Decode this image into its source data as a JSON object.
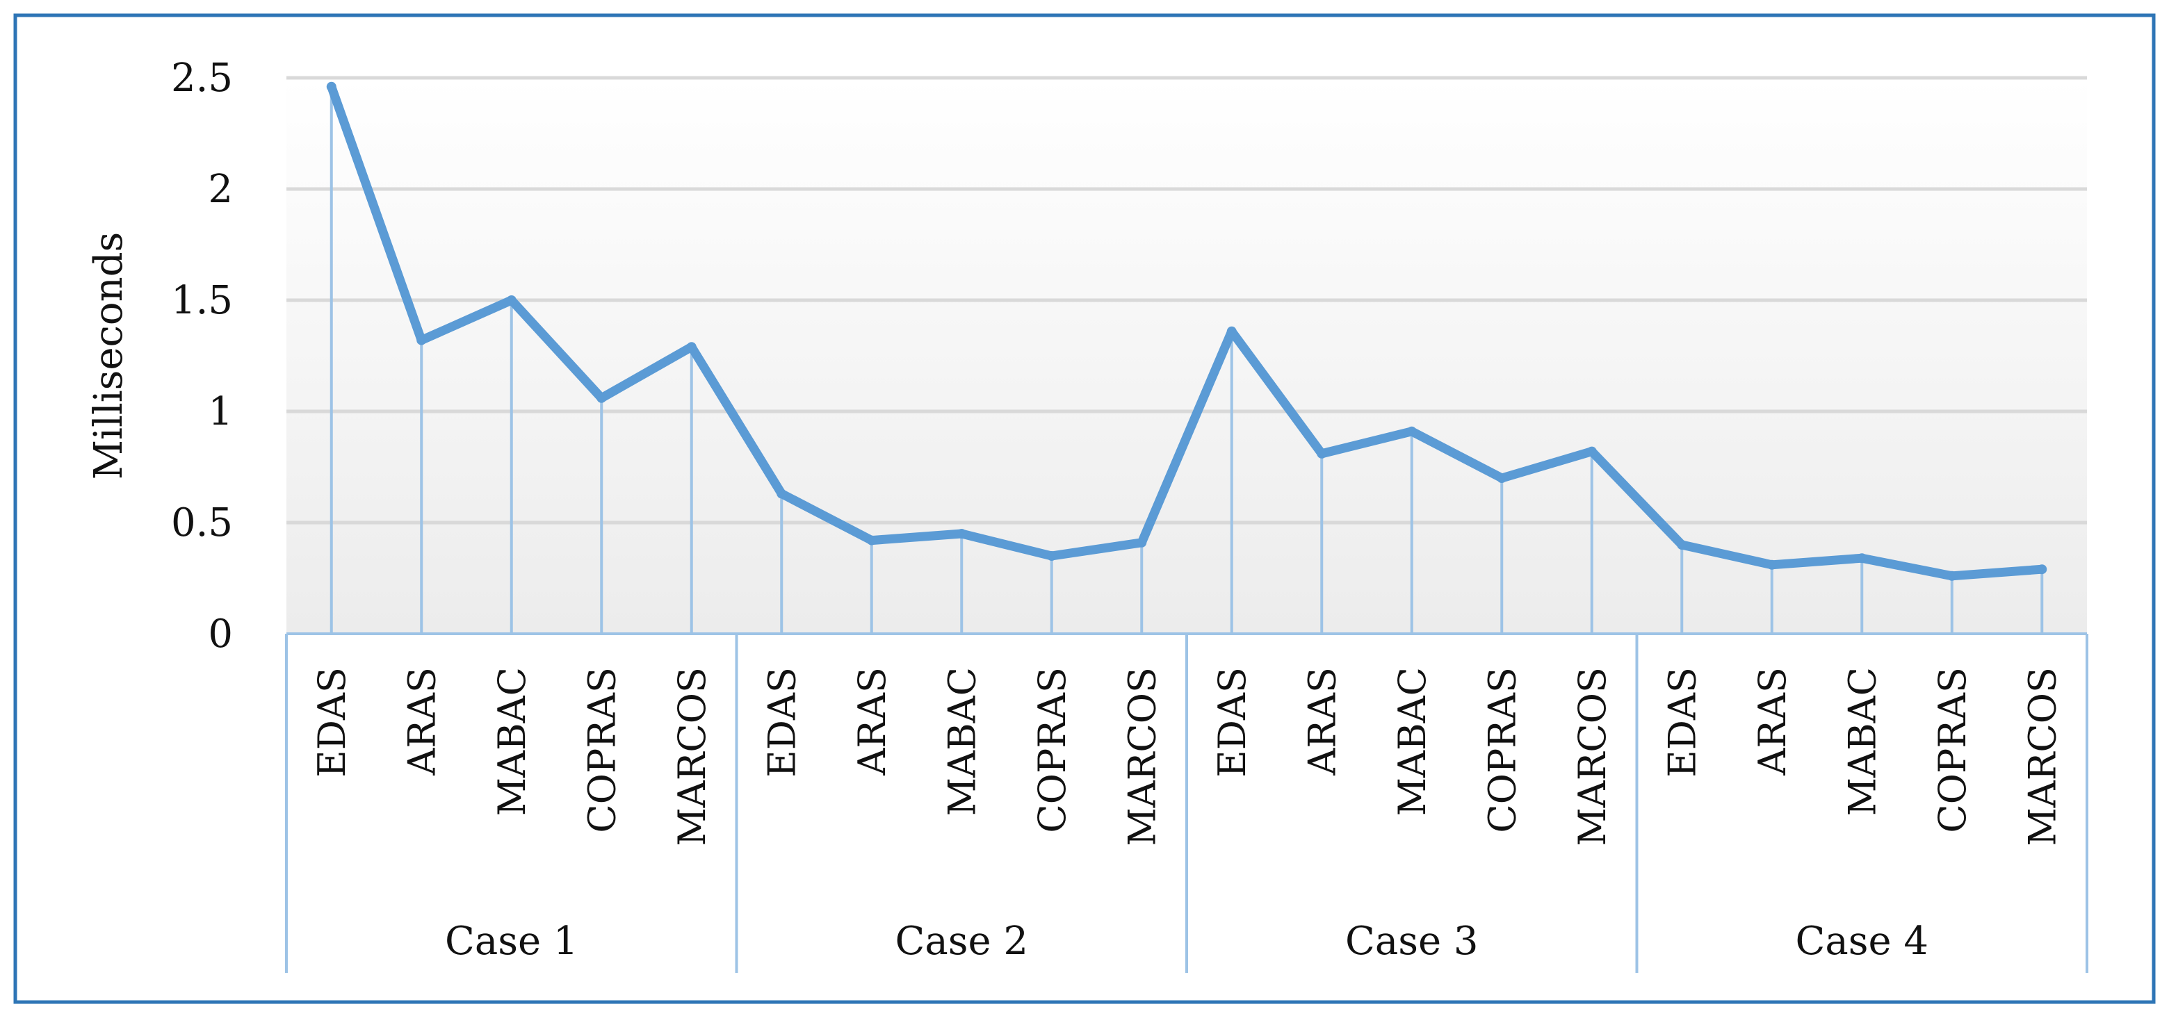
{
  "chart_data": {
    "type": "line",
    "title": "",
    "ylabel": "Milliseconds",
    "xlabel": "",
    "ylim": [
      0,
      2.5
    ],
    "yticks": [
      0,
      0.5,
      1,
      1.5,
      2,
      2.5
    ],
    "ytick_labels": [
      "0",
      "0.5",
      "1",
      "1.5",
      "2",
      "2.5"
    ],
    "grid": true,
    "legend": "none",
    "groups": [
      {
        "label": "Case 1",
        "categories": [
          "EDAS",
          "ARAS",
          "MABAC",
          "COPRAS",
          "MARCOS"
        ]
      },
      {
        "label": "Case 2",
        "categories": [
          "EDAS",
          "ARAS",
          "MABAC",
          "COPRAS",
          "MARCOS"
        ]
      },
      {
        "label": "Case 3",
        "categories": [
          "EDAS",
          "ARAS",
          "MABAC",
          "COPRAS",
          "MARCOS"
        ]
      },
      {
        "label": "Case 4",
        "categories": [
          "EDAS",
          "ARAS",
          "MABAC",
          "COPRAS",
          "MARCOS"
        ]
      }
    ],
    "series": [
      {
        "values": [
          2.46,
          1.32,
          1.5,
          1.06,
          1.29,
          0.63,
          0.42,
          0.45,
          0.35,
          0.41,
          1.36,
          0.81,
          0.91,
          0.7,
          0.82,
          0.4,
          0.31,
          0.34,
          0.26,
          0.29
        ],
        "color": "#5b9bd5"
      }
    ],
    "colors": {
      "line": "#5b9bd5",
      "drop_line": "#9dc3e6",
      "grid": "#d9d9d9",
      "axis": "#9dc3e6",
      "frame": "#2e75b6"
    }
  }
}
